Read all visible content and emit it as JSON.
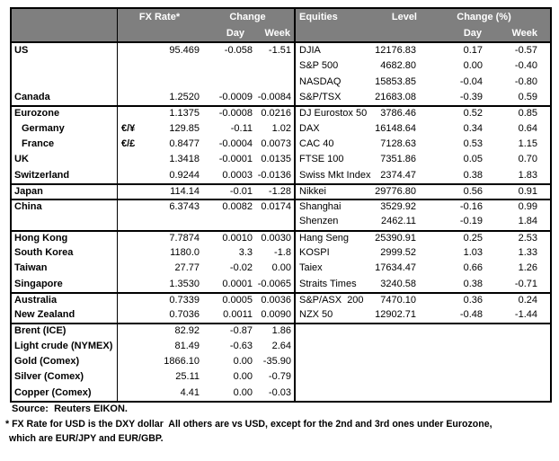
{
  "colors": {
    "header_bg": "#7f7f7f",
    "header_text": "#ffffff",
    "border": "#000000",
    "text": "#000000",
    "background": "#ffffff"
  },
  "fx_header": {
    "rate_label": "FX Rate*",
    "change_label": "Change",
    "day_label": "Day",
    "week_label": "Week"
  },
  "eq_header": {
    "title": "Equities",
    "level_label": "Level",
    "change_label": "Change (%)",
    "day_label": "Day",
    "week_label": "Week"
  },
  "rows": [
    {
      "sep": false,
      "indent": false,
      "label": "US",
      "sym": "",
      "rate": "95.469",
      "day": "-0.058",
      "week": "-1.51",
      "eq": "DJIA",
      "level": "12176.83",
      "eday": "0.17",
      "eweek": "-0.57"
    },
    {
      "sep": false,
      "indent": false,
      "label": "",
      "sym": "",
      "rate": "",
      "day": "",
      "week": "",
      "eq": "S&P 500",
      "level": "4682.80",
      "eday": "0.00",
      "eweek": "-0.40"
    },
    {
      "sep": false,
      "indent": false,
      "label": "",
      "sym": "",
      "rate": "",
      "day": "",
      "week": "",
      "eq": "NASDAQ",
      "level": "15853.85",
      "eday": "-0.04",
      "eweek": "-0.80"
    },
    {
      "sep": false,
      "indent": false,
      "label": "Canada",
      "sym": "",
      "rate": "1.2520",
      "day": "-0.0009",
      "week": "-0.0084",
      "eq": "S&P/TSX",
      "level": "21683.08",
      "eday": "-0.39",
      "eweek": "0.59"
    },
    {
      "sep": true,
      "indent": false,
      "label": "Eurozone",
      "sym": "",
      "rate": "1.1375",
      "day": "-0.0008",
      "week": "0.0216",
      "eq": "DJ Eurostox 50",
      "level": "3786.46",
      "eday": "0.52",
      "eweek": "0.85"
    },
    {
      "sep": false,
      "indent": true,
      "label": "Germany",
      "sym": "€/¥",
      "rate": "129.85",
      "day": "-0.11",
      "week": "1.02",
      "eq": "DAX",
      "level": "16148.64",
      "eday": "0.34",
      "eweek": "0.64"
    },
    {
      "sep": false,
      "indent": true,
      "label": "France",
      "sym": "€/£",
      "rate": "0.8477",
      "day": "-0.0004",
      "week": "0.0073",
      "eq": "CAC 40",
      "level": "7128.63",
      "eday": "0.53",
      "eweek": "1.15"
    },
    {
      "sep": false,
      "indent": false,
      "label": "UK",
      "sym": "",
      "rate": "1.3418",
      "day": "-0.0001",
      "week": "0.0135",
      "eq": "FTSE 100",
      "level": "7351.86",
      "eday": "0.05",
      "eweek": "0.70"
    },
    {
      "sep": false,
      "indent": false,
      "label": "Switzerland",
      "sym": "",
      "rate": "0.9244",
      "day": "0.0003",
      "week": "-0.0136",
      "eq": "Swiss Mkt Index",
      "level": "2374.47",
      "eday": "0.38",
      "eweek": "1.83"
    },
    {
      "sep": true,
      "indent": false,
      "label": "Japan",
      "sym": "",
      "rate": "114.14",
      "day": "-0.01",
      "week": "-1.28",
      "eq": "Nikkei",
      "level": "29776.80",
      "eday": "0.56",
      "eweek": "0.91"
    },
    {
      "sep": true,
      "indent": false,
      "label": "China",
      "sym": "",
      "rate": "6.3743",
      "day": "0.0082",
      "week": "0.0174",
      "eq": "Shanghai",
      "level": "3529.92",
      "eday": "-0.16",
      "eweek": "0.99"
    },
    {
      "sep": false,
      "indent": false,
      "label": "",
      "sym": "",
      "rate": "",
      "day": "",
      "week": "",
      "eq": "Shenzen",
      "level": "2462.11",
      "eday": "-0.19",
      "eweek": "1.84"
    },
    {
      "sep": true,
      "indent": false,
      "label": "Hong Kong",
      "sym": "",
      "rate": "7.7874",
      "day": "0.0010",
      "week": "0.0030",
      "eq": "Hang Seng",
      "level": "25390.91",
      "eday": "0.25",
      "eweek": "2.53"
    },
    {
      "sep": false,
      "indent": false,
      "label": "South Korea",
      "sym": "",
      "rate": "1180.0",
      "day": "3.3",
      "week": "-1.8",
      "eq": "KOSPI",
      "level": "2999.52",
      "eday": "1.03",
      "eweek": "1.33"
    },
    {
      "sep": false,
      "indent": false,
      "label": "Taiwan",
      "sym": "",
      "rate": "27.77",
      "day": "-0.02",
      "week": "0.00",
      "eq": "Taiex",
      "level": "17634.47",
      "eday": "0.66",
      "eweek": "1.26"
    },
    {
      "sep": false,
      "indent": false,
      "label": "Singapore",
      "sym": "",
      "rate": "1.3530",
      "day": "0.0001",
      "week": "-0.0065",
      "eq": "Straits Times",
      "level": "3240.58",
      "eday": "0.38",
      "eweek": "-0.71"
    },
    {
      "sep": true,
      "indent": false,
      "label": "Australia",
      "sym": "",
      "rate": "0.7339",
      "day": "0.0005",
      "week": "0.0036",
      "eq": "S&P/ASX  200",
      "level": "7470.10",
      "eday": "0.36",
      "eweek": "0.24"
    },
    {
      "sep": false,
      "indent": false,
      "label": "New Zealand",
      "sym": "",
      "rate": "0.7036",
      "day": "0.0011",
      "week": "0.0090",
      "eq": "NZX 50",
      "level": "12902.71",
      "eday": "-0.48",
      "eweek": "-1.44"
    },
    {
      "sep": true,
      "indent": false,
      "label": "Brent (ICE)",
      "sym": "",
      "rate": "82.92",
      "day": "-0.87",
      "week": "1.86",
      "eq": "",
      "level": "",
      "eday": "",
      "eweek": ""
    },
    {
      "sep": false,
      "indent": false,
      "label": "Light crude (NYMEX)",
      "sym": "",
      "rate": "81.49",
      "day": "-0.63",
      "week": "2.64",
      "eq": "",
      "level": "",
      "eday": "",
      "eweek": ""
    },
    {
      "sep": false,
      "indent": false,
      "label": "Gold (Comex)",
      "sym": "",
      "rate": "1866.10",
      "day": "0.00",
      "week": "-35.90",
      "eq": "",
      "level": "",
      "eday": "",
      "eweek": ""
    },
    {
      "sep": false,
      "indent": false,
      "label": "Silver (Comex)",
      "sym": "",
      "rate": "25.11",
      "day": "0.00",
      "week": "-0.79",
      "eq": "",
      "level": "",
      "eday": "",
      "eweek": ""
    },
    {
      "sep": false,
      "indent": false,
      "label": "Copper (Comex)",
      "sym": "",
      "rate": "4.41",
      "day": "0.00",
      "week": "-0.03",
      "eq": "",
      "level": "",
      "eday": "",
      "eweek": ""
    }
  ],
  "footer": {
    "source": "Source:  Reuters EIKON.",
    "note1": "* FX Rate for USD is the DXY dollar  All others are vs USD, except for the 2nd and 3rd ones under Eurozone,",
    "note2": "which are EUR/JPY and EUR/GBP."
  }
}
